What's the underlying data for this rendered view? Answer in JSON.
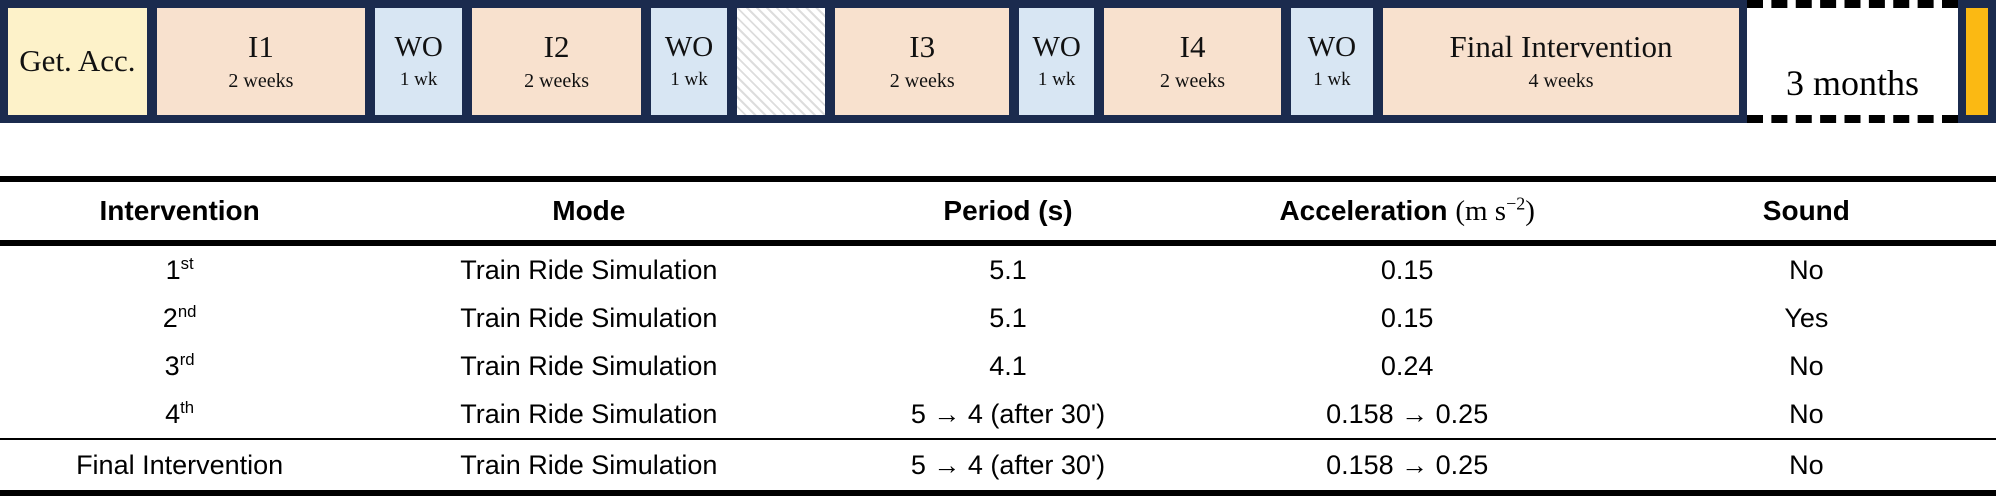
{
  "timeline": {
    "boxes": [
      {
        "label": "Get. Acc.",
        "sublabel": ""
      },
      {
        "label": "I1",
        "sublabel": "2 weeks"
      },
      {
        "label": "WO",
        "sublabel": "1 wk"
      },
      {
        "label": "I2",
        "sublabel": "2 weeks"
      },
      {
        "label": "WO",
        "sublabel": "1 wk"
      },
      {
        "label": "",
        "sublabel": ""
      },
      {
        "label": "I3",
        "sublabel": "2 weeks"
      },
      {
        "label": "WO",
        "sublabel": "1 wk"
      },
      {
        "label": "I4",
        "sublabel": "2 weeks"
      },
      {
        "label": "WO",
        "sublabel": "1 wk"
      },
      {
        "label": "Final Intervention",
        "sublabel": "4 weeks"
      },
      {
        "label": "3 months",
        "sublabel": ""
      },
      {
        "label": "",
        "sublabel": ""
      }
    ],
    "colors": {
      "frame": "#1b2b4e",
      "acclimation": "#fdf2c9",
      "intervention": "#f8e1ce",
      "washout": "#d8e6f3",
      "endpoint": "#fbb913"
    }
  },
  "table": {
    "headers": {
      "intervention": "Intervention",
      "mode": "Mode",
      "period": "Period (s)",
      "acceleration_label": "Acceleration ",
      "acceleration_unit_pre": "(m s",
      "acceleration_unit_sup": "−2",
      "acceleration_unit_post": ")",
      "sound": "Sound"
    },
    "rows": [
      {
        "label": "1",
        "suffix": "st",
        "mode": "Train Ride Simulation",
        "period": "5.1",
        "acceleration": "0.15",
        "sound": "No"
      },
      {
        "label": "2",
        "suffix": "nd",
        "mode": "Train Ride Simulation",
        "period": "5.1",
        "acceleration": "0.15",
        "sound": "Yes"
      },
      {
        "label": "3",
        "suffix": "rd",
        "mode": "Train Ride Simulation",
        "period": "4.1",
        "acceleration": "0.24",
        "sound": "No"
      },
      {
        "label": "4",
        "suffix": "th",
        "mode": "Train Ride Simulation",
        "period": "5 → 4 (after 30')",
        "acceleration": "0.158 → 0.25",
        "sound": "No"
      },
      {
        "label": "Final Intervention",
        "suffix": "",
        "mode": "Train Ride Simulation",
        "period": "5 → 4 (after 30')",
        "acceleration": "0.158 → 0.25",
        "sound": "No"
      }
    ]
  }
}
